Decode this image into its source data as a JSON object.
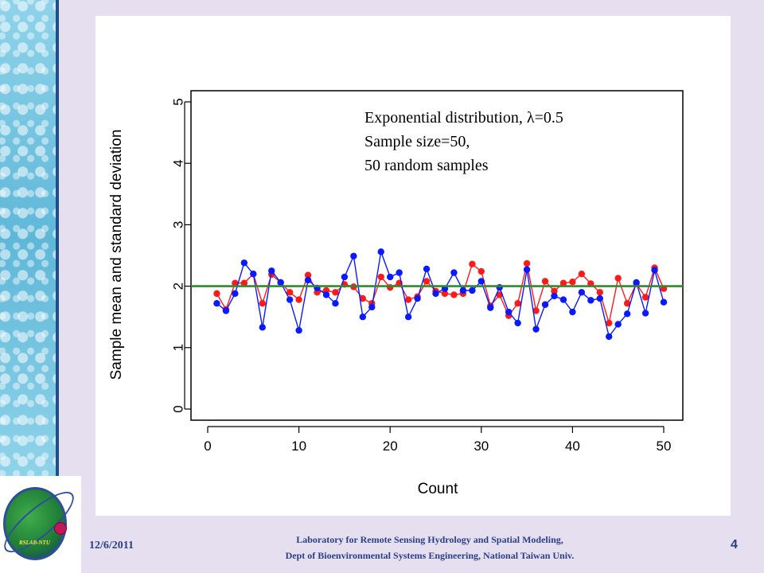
{
  "footer": {
    "date": "12/6/2011",
    "lab_line1": "Laboratory for Remote Sensing Hydrology and Spatial Modeling,",
    "lab_line2": "Dept of Bioenvironmental Systems Engineering,  National Taiwan Univ.",
    "page_number": "4"
  },
  "logo": {
    "text": "RSLAB-NTU"
  },
  "chart_data": {
    "type": "line",
    "xlabel": "Count",
    "ylabel": "Sample mean and standard deviation",
    "xlim": [
      0,
      51
    ],
    "ylim": [
      0,
      5
    ],
    "x_ticks": [
      "0",
      "10",
      "20",
      "30",
      "40",
      "50"
    ],
    "y_ticks": [
      "0",
      "1",
      "2",
      "3",
      "4",
      "5"
    ],
    "annotation": [
      "Exponential distribution, λ=0.5",
      "Sample size=50,",
      "50 random samples"
    ],
    "reference_line": {
      "y": 2,
      "color": "#2e8b2e"
    },
    "x": [
      1,
      2,
      3,
      4,
      5,
      6,
      7,
      8,
      9,
      10,
      11,
      12,
      13,
      14,
      15,
      16,
      17,
      18,
      19,
      20,
      21,
      22,
      23,
      24,
      25,
      26,
      27,
      28,
      29,
      30,
      31,
      32,
      33,
      34,
      35,
      36,
      37,
      38,
      39,
      40,
      41,
      42,
      43,
      44,
      45,
      46,
      47,
      48,
      49,
      50
    ],
    "series": [
      {
        "color": "#ff1a1a",
        "values": [
          1.88,
          1.62,
          2.05,
          2.05,
          2.2,
          1.72,
          2.19,
          2.06,
          1.9,
          1.78,
          2.18,
          1.9,
          1.93,
          1.9,
          2.03,
          1.99,
          1.8,
          1.72,
          2.15,
          1.98,
          2.05,
          1.78,
          1.83,
          2.08,
          1.92,
          1.88,
          1.86,
          1.88,
          2.36,
          2.24,
          1.68,
          1.86,
          1.52,
          1.72,
          2.37,
          1.6,
          2.08,
          1.92,
          2.05,
          2.07,
          2.2,
          2.04,
          1.9,
          1.4,
          2.13,
          1.72,
          2.04,
          1.82,
          2.3,
          1.96
        ]
      },
      {
        "color": "#0a1aff",
        "values": [
          1.72,
          1.6,
          1.88,
          2.38,
          2.2,
          1.33,
          2.25,
          2.06,
          1.78,
          1.28,
          2.1,
          1.97,
          1.86,
          1.72,
          2.15,
          2.49,
          1.5,
          1.66,
          2.56,
          2.15,
          2.22,
          1.5,
          1.8,
          2.28,
          1.88,
          1.96,
          2.22,
          1.93,
          1.93,
          2.08,
          1.65,
          1.98,
          1.58,
          1.4,
          2.27,
          1.3,
          1.7,
          1.84,
          1.78,
          1.58,
          1.9,
          1.77,
          1.8,
          1.18,
          1.38,
          1.55,
          2.06,
          1.56,
          2.26,
          1.74
        ]
      }
    ]
  }
}
